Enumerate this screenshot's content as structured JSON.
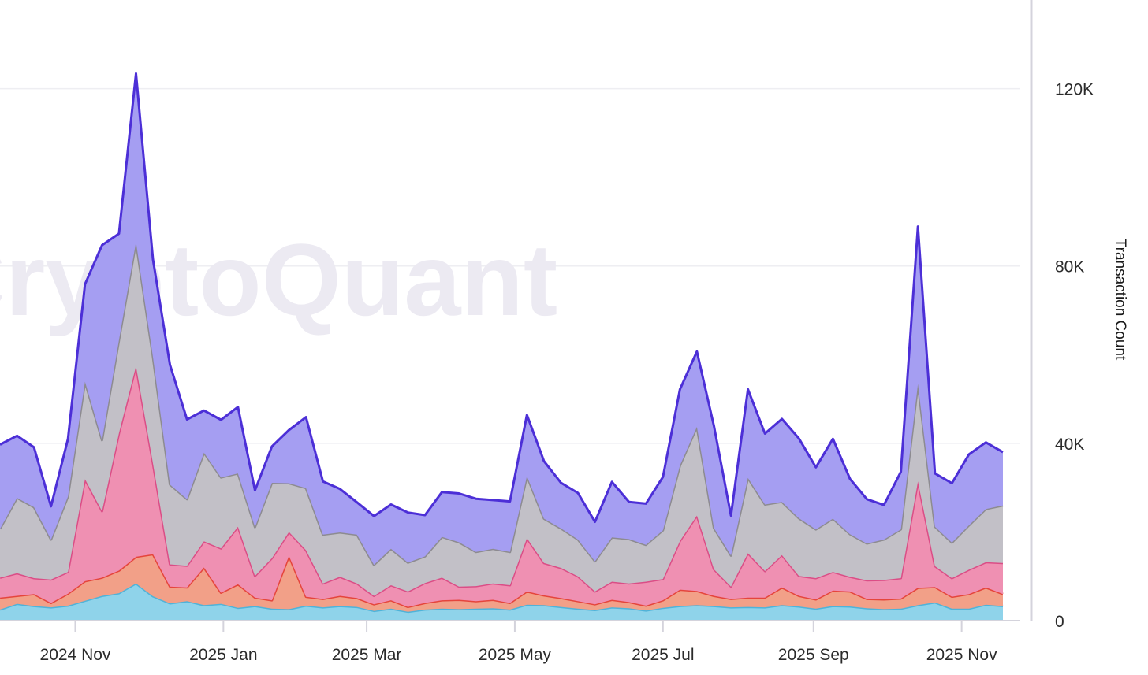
{
  "chart_data": {
    "type": "area",
    "stacked": true,
    "watermark": "CryptoQuant",
    "ylabel": "Transaction Count",
    "yaxis_position": "right",
    "ylim": [
      0,
      140000
    ],
    "yticks": [
      {
        "value": 0,
        "label": "0"
      },
      {
        "value": 40000,
        "label": "40K"
      },
      {
        "value": 80000,
        "label": "80K"
      },
      {
        "value": 120000,
        "label": "120K"
      }
    ],
    "xlim": [
      "2024-10-01",
      "2025-11-30"
    ],
    "xticks": [
      {
        "date": "2024-11-01",
        "label": "2024 Nov"
      },
      {
        "date": "2025-01-01",
        "label": "2025 Jan"
      },
      {
        "date": "2025-03-01",
        "label": "2025 Mar"
      },
      {
        "date": "2025-05-01",
        "label": "2025 May"
      },
      {
        "date": "2025-07-01",
        "label": "2025 Jul"
      },
      {
        "date": "2025-09-01",
        "label": "2025 Sep"
      },
      {
        "date": "2025-11-01",
        "label": "2025 Nov"
      }
    ],
    "grid": true,
    "legend": "none",
    "x": [
      "2024-10-01",
      "2024-10-08",
      "2024-10-15",
      "2024-10-22",
      "2024-10-29",
      "2024-11-05",
      "2024-11-12",
      "2024-11-19",
      "2024-11-26",
      "2024-12-03",
      "2024-12-10",
      "2024-12-17",
      "2024-12-24",
      "2024-12-31",
      "2025-01-07",
      "2025-01-14",
      "2025-01-21",
      "2025-01-28",
      "2025-02-04",
      "2025-02-11",
      "2025-02-18",
      "2025-02-25",
      "2025-03-04",
      "2025-03-11",
      "2025-03-18",
      "2025-03-25",
      "2025-04-01",
      "2025-04-08",
      "2025-04-15",
      "2025-04-22",
      "2025-04-29",
      "2025-05-06",
      "2025-05-13",
      "2025-05-20",
      "2025-05-27",
      "2025-06-03",
      "2025-06-10",
      "2025-06-17",
      "2025-06-24",
      "2025-07-01",
      "2025-07-08",
      "2025-07-15",
      "2025-07-22",
      "2025-07-29",
      "2025-08-05",
      "2025-08-12",
      "2025-08-19",
      "2025-08-26",
      "2025-09-02",
      "2025-09-09",
      "2025-09-16",
      "2025-09-23",
      "2025-09-30",
      "2025-10-07",
      "2025-10-14",
      "2025-10-21",
      "2025-10-28",
      "2025-11-04",
      "2025-11-11",
      "2025-11-18"
    ],
    "series": [
      {
        "color": "#8fd3ea",
        "line": "#4fb3d9",
        "values": [
          2500,
          3800,
          3300,
          3000,
          3400,
          4500,
          5600,
          6200,
          8400,
          5500,
          3900,
          4400,
          3500,
          3800,
          2900,
          3300,
          2700,
          2600,
          3400,
          3000,
          3300,
          3100,
          2200,
          2700,
          2000,
          2500,
          2700,
          2600,
          2700,
          2800,
          2500,
          3600,
          3500,
          3100,
          2700,
          2400,
          3000,
          2800,
          2300,
          2900,
          3300,
          3500,
          3300,
          3000,
          3100,
          3000,
          3500,
          3200,
          2700,
          3300,
          3200,
          2800,
          2600,
          2700,
          3500,
          4100,
          2700,
          2700,
          3600,
          3300
        ]
      },
      {
        "color": "#f2a088",
        "line": "#e5453c",
        "values": [
          2700,
          1800,
          2700,
          1000,
          2700,
          4400,
          4100,
          5100,
          6000,
          9500,
          3800,
          3100,
          8500,
          2500,
          5300,
          1900,
          1900,
          12000,
          2000,
          1900,
          2300,
          2000,
          1500,
          1900,
          1100,
          1500,
          1900,
          2100,
          1700,
          1900,
          1500,
          3000,
          2200,
          2000,
          1700,
          1300,
          1700,
          1400,
          1100,
          1700,
          3700,
          3200,
          2300,
          1900,
          2100,
          2200,
          4000,
          2400,
          2100,
          3500,
          3400,
          2100,
          2200,
          2300,
          3900,
          3500,
          2700,
          3300,
          3900,
          2700
        ]
      },
      {
        "color": "#ef90b2",
        "line": "#db4d86",
        "values": [
          4500,
          5100,
          3600,
          5300,
          4900,
          23000,
          15000,
          31000,
          43000,
          20500,
          5000,
          4900,
          5900,
          10000,
          13000,
          4900,
          9500,
          5400,
          10500,
          3500,
          4300,
          3300,
          1900,
          3400,
          3500,
          4500,
          5100,
          3000,
          3400,
          3700,
          4000,
          12000,
          7300,
          6800,
          5600,
          2900,
          4100,
          4200,
          5400,
          4800,
          11000,
          17000,
          6000,
          2800,
          10000,
          6000,
          7300,
          4500,
          4800,
          4200,
          3300,
          4200,
          4400,
          4600,
          24000,
          4700,
          4200,
          5500,
          5700,
          7000
        ]
      },
      {
        "color": "#c2c0c7",
        "line": "#8d8b90",
        "values": [
          11000,
          17000,
          16000,
          9000,
          17000,
          22000,
          16000,
          21000,
          28000,
          24000,
          18000,
          15000,
          20000,
          16000,
          12000,
          11000,
          17000,
          11000,
          14000,
          11000,
          10000,
          11000,
          7000,
          8200,
          6500,
          6000,
          9200,
          10000,
          7700,
          7800,
          7500,
          14000,
          10000,
          8900,
          8300,
          6800,
          10000,
          10000,
          8300,
          11000,
          17000,
          20000,
          9300,
          7000,
          17000,
          15000,
          12000,
          13000,
          11000,
          12000,
          9600,
          8300,
          9100,
          11000,
          22000,
          8900,
          8000,
          10000,
          12000,
          13000
        ]
      },
      {
        "color": "#a59ef2",
        "line": "#4c2fd7",
        "values": [
          19000,
          14000,
          13500,
          7500,
          13000,
          22000,
          44000,
          24000,
          38000,
          22000,
          27000,
          18000,
          9500,
          13000,
          15000,
          8300,
          8200,
          12000,
          16000,
          12000,
          9800,
          7300,
          11000,
          10000,
          11300,
          9300,
          10100,
          11000,
          12000,
          11000,
          11400,
          13800,
          13000,
          10300,
          10500,
          8900,
          12500,
          8400,
          9300,
          12000,
          17200,
          17000,
          23000,
          9000,
          20000,
          16000,
          18700,
          18000,
          14000,
          18000,
          12500,
          10000,
          7800,
          13000,
          35500,
          12000,
          13400,
          16000,
          15000,
          12000
        ]
      }
    ]
  }
}
